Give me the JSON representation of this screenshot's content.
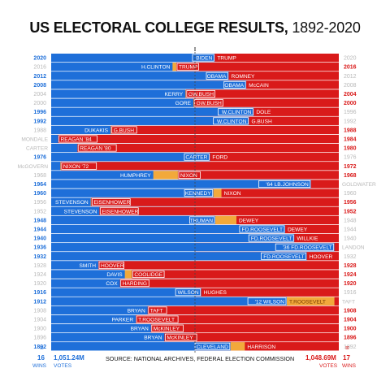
{
  "title": {
    "bold": "US ELECTORAL COLLEGE RESULTS,",
    "light": " 1892-2020"
  },
  "colors": {
    "dem": "#1e6fd9",
    "dem_light": "#3d86e6",
    "rep": "#d91a1a",
    "rep_light": "#e23a3a",
    "other": "#f2a93b",
    "win_dem": "#1e6fd9",
    "win_rep": "#d91a1a",
    "fade": "#b8b8b8",
    "midline": "#444444"
  },
  "chart_data": {
    "type": "bar",
    "title": "US ELECTORAL COLLEGE RESULTS, 1892-2020",
    "orientation": "horizontal-stacked",
    "rows": [
      {
        "year": "2020",
        "winner": "dem",
        "dem": 306,
        "rep": 232,
        "other": 0,
        "dem_label": "BIDEN",
        "rep_label": "TRUMP",
        "other_label": "",
        "left_label": "",
        "right_label": ""
      },
      {
        "year": "2016",
        "winner": "rep",
        "dem": 227,
        "rep": 304,
        "other": 7,
        "dem_label": "H.CLINTON",
        "rep_label": "TRUMP",
        "other_label": "",
        "left_label": "",
        "right_label": ""
      },
      {
        "year": "2012",
        "winner": "dem",
        "dem": 332,
        "rep": 206,
        "other": 0,
        "dem_label": "OBAMA",
        "rep_label": "ROMNEY",
        "other_label": "",
        "left_label": "",
        "right_label": ""
      },
      {
        "year": "2008",
        "winner": "dem",
        "dem": 365,
        "rep": 173,
        "other": 0,
        "dem_label": "OBAMA",
        "rep_label": "McCAIN",
        "other_label": "",
        "left_label": "",
        "right_label": ""
      },
      {
        "year": "2004",
        "winner": "rep",
        "dem": 251,
        "rep": 286,
        "other": 1,
        "dem_label": "KERRY",
        "rep_label": "GW.BUSH",
        "other_label": "",
        "left_label": "",
        "right_label": ""
      },
      {
        "year": "2000",
        "winner": "rep",
        "dem": 266,
        "rep": 271,
        "other": 1,
        "dem_label": "GORE",
        "rep_label": "GW.BUSH",
        "other_label": "",
        "left_label": "",
        "right_label": ""
      },
      {
        "year": "1996",
        "winner": "dem",
        "dem": 379,
        "rep": 159,
        "other": 0,
        "dem_label": "W.CLINTON",
        "rep_label": "DOLE",
        "other_label": "",
        "left_label": "",
        "right_label": ""
      },
      {
        "year": "1992",
        "winner": "dem",
        "dem": 370,
        "rep": 168,
        "other": 0,
        "dem_label": "W.CLINTON",
        "rep_label": "G.BUSH",
        "other_label": "",
        "left_label": "",
        "right_label": ""
      },
      {
        "year": "1988",
        "winner": "rep",
        "dem": 111,
        "rep": 426,
        "other": 1,
        "dem_label": "DUKAKIS",
        "rep_label": "G.BUSH",
        "other_label": "",
        "left_label": "",
        "right_label": ""
      },
      {
        "year": "1984",
        "winner": "rep",
        "dem": 13,
        "rep": 525,
        "other": 0,
        "dem_label": "",
        "rep_label": "REAGAN '84",
        "other_label": "",
        "left_label": "MONDALE",
        "right_label": ""
      },
      {
        "year": "1980",
        "winner": "rep",
        "dem": 49,
        "rep": 489,
        "other": 0,
        "dem_label": "",
        "rep_label": "REAGAN '80",
        "other_label": "",
        "left_label": "CARTER",
        "right_label": ""
      },
      {
        "year": "1976",
        "winner": "dem",
        "dem": 297,
        "rep": 241,
        "other": 0,
        "dem_label": "CARTER",
        "rep_label": "FORD",
        "other_label": "",
        "left_label": "",
        "right_label": ""
      },
      {
        "year": "1972",
        "winner": "rep",
        "dem": 17,
        "rep": 520,
        "other": 1,
        "dem_label": "",
        "rep_label": "NIXON '72",
        "other_label": "",
        "left_label": "McGOVERN",
        "right_label": ""
      },
      {
        "year": "1968",
        "winner": "rep",
        "dem": 191,
        "rep": 301,
        "other": 46,
        "dem_label": "HUMPHREY",
        "rep_label": "NIXON",
        "other_label": "",
        "left_label": "",
        "right_label": ""
      },
      {
        "year": "1964",
        "winner": "dem",
        "dem": 486,
        "rep": 52,
        "other": 0,
        "dem_label": "'64 LB.JOHNSON",
        "rep_label": "",
        "other_label": "",
        "left_label": "",
        "right_label": "GOLDWATER"
      },
      {
        "year": "1960",
        "winner": "dem",
        "dem": 303,
        "rep": 219,
        "other": 15,
        "dem_label": "KENNEDY",
        "rep_label": "NIXON",
        "other_label": "",
        "left_label": "",
        "right_label": ""
      },
      {
        "year": "1956",
        "winner": "rep",
        "dem": 73,
        "rep": 457,
        "other": 1,
        "dem_label": "STEVENSON",
        "rep_label": "EISENHOWER",
        "other_label": "",
        "left_label": "",
        "right_label": ""
      },
      {
        "year": "1952",
        "winner": "rep",
        "dem": 89,
        "rep": 442,
        "other": 0,
        "dem_label": "STEVENSON",
        "rep_label": "EISENHOWER",
        "other_label": "",
        "left_label": "",
        "right_label": ""
      },
      {
        "year": "1948",
        "winner": "dem",
        "dem": 303,
        "rep": 189,
        "other": 39,
        "dem_label": "TRUMAN",
        "rep_label": "DEWEY",
        "other_label": "",
        "left_label": "",
        "right_label": ""
      },
      {
        "year": "1944",
        "winner": "dem",
        "dem": 432,
        "rep": 99,
        "other": 0,
        "dem_label": "FD.ROOSEVELT",
        "rep_label": "DEWEY",
        "other_label": "",
        "left_label": "",
        "right_label": ""
      },
      {
        "year": "1940",
        "winner": "dem",
        "dem": 449,
        "rep": 82,
        "other": 0,
        "dem_label": "FD.ROOSEVELT",
        "rep_label": "WILLKIE",
        "other_label": "",
        "left_label": "",
        "right_label": ""
      },
      {
        "year": "1936",
        "winner": "dem",
        "dem": 523,
        "rep": 8,
        "other": 0,
        "dem_label": "'36 FD.ROOSEVELT",
        "rep_label": "",
        "other_label": "",
        "left_label": "",
        "right_label": "LANDON"
      },
      {
        "year": "1932",
        "winner": "dem",
        "dem": 472,
        "rep": 59,
        "other": 0,
        "dem_label": "FD.ROOSEVELT",
        "rep_label": "HOOVER",
        "other_label": "",
        "left_label": "",
        "right_label": ""
      },
      {
        "year": "1928",
        "winner": "rep",
        "dem": 87,
        "rep": 444,
        "other": 0,
        "dem_label": "SMITH",
        "rep_label": "HOOVER",
        "other_label": "",
        "left_label": "",
        "right_label": ""
      },
      {
        "year": "1924",
        "winner": "rep",
        "dem": 136,
        "rep": 382,
        "other": 13,
        "dem_label": "DAVIS",
        "rep_label": "COOLIDGE",
        "other_label": "",
        "left_label": "",
        "right_label": ""
      },
      {
        "year": "1920",
        "winner": "rep",
        "dem": 127,
        "rep": 404,
        "other": 0,
        "dem_label": "COX",
        "rep_label": "HARDING",
        "other_label": "",
        "left_label": "",
        "right_label": ""
      },
      {
        "year": "1916",
        "winner": "dem",
        "dem": 277,
        "rep": 254,
        "other": 0,
        "dem_label": "WILSON",
        "rep_label": "HUGHES",
        "other_label": "",
        "left_label": "",
        "right_label": ""
      },
      {
        "year": "1912",
        "winner": "dem",
        "dem": 435,
        "rep": 8,
        "other": 88,
        "dem_label": "'12 WILSON",
        "rep_label": "",
        "other_label": "T.ROOSEVELT",
        "left_label": "",
        "right_label": "TAFT"
      },
      {
        "year": "1908",
        "winner": "rep",
        "dem": 162,
        "rep": 321,
        "other": 0,
        "dem_label": "BRYAN",
        "rep_label": "TAFT",
        "other_label": "",
        "left_label": "",
        "right_label": ""
      },
      {
        "year": "1904",
        "winner": "rep",
        "dem": 140,
        "rep": 336,
        "other": 0,
        "dem_label": "PARKER",
        "rep_label": "T.ROOSEVELT",
        "other_label": "",
        "left_label": "",
        "right_label": ""
      },
      {
        "year": "1900",
        "winner": "rep",
        "dem": 155,
        "rep": 292,
        "other": 0,
        "dem_label": "BRYAN",
        "rep_label": "McKINLEY",
        "other_label": "",
        "left_label": "",
        "right_label": ""
      },
      {
        "year": "1896",
        "winner": "rep",
        "dem": 176,
        "rep": 271,
        "other": 0,
        "dem_label": "BRYAN",
        "rep_label": "McKINLEY",
        "other_label": "",
        "left_label": "",
        "right_label": ""
      },
      {
        "year": "1892",
        "winner": "dem",
        "dem": 277,
        "rep": 145,
        "other": 22,
        "dem_label": "CLEVELAND",
        "rep_label": "HARRISON",
        "other_label": "",
        "left_label": "",
        "right_label": ""
      }
    ]
  },
  "footer": {
    "dem_wins": "16",
    "dem_wins_label": "WINS",
    "dem_votes": "1,051.24M",
    "dem_votes_label": "VOTES",
    "rep_votes": "1,048.69M",
    "rep_votes_label": "VOTES",
    "rep_wins": "17",
    "rep_wins_label": "WINS",
    "source": "SOURCE: NATIONAL ARCHIVES, FEDERAL ELECTION COMMISSION",
    "equals": "="
  }
}
